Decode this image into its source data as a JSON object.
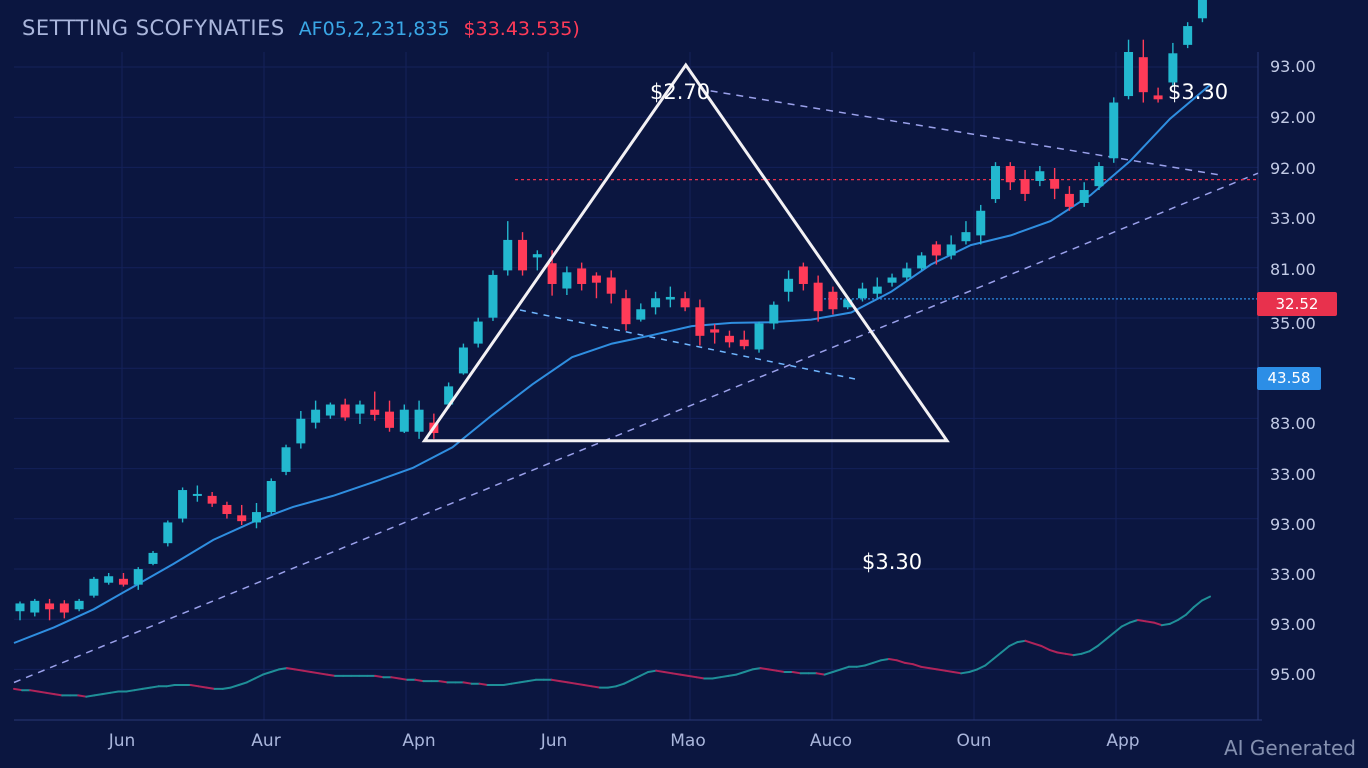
{
  "header": {
    "title": "SETTTING SCOFYNATIES",
    "value_1": "AF05,2,231,835",
    "value_2": "$33.43.535)"
  },
  "annotations": {
    "apex": "$2.70",
    "bottom_right": "$3.30",
    "top_right": "$3.30"
  },
  "badges": {
    "red_level": "32.52",
    "blue_level": "43.58"
  },
  "y_ticks": [
    "93.00",
    "92.00",
    "92.00",
    "33.00",
    "81.00",
    "35.00",
    "",
    "83.00",
    "33.00",
    "93.00",
    "33.00",
    "93.00",
    "95.00"
  ],
  "x_ticks": [
    "Jun",
    "Aur",
    "Apn",
    "Jun",
    "Mao",
    "Auco",
    "Oun",
    "App"
  ],
  "watermark": "AI Generated",
  "colors": {
    "background": "#0b1640",
    "up": "#23b8cf",
    "down": "#ff3b58",
    "ma_line": "#2f8ee0",
    "triangle": "#f3f1f4",
    "dashed_trend": "#9aa0ea",
    "red_level": "#e8314d",
    "blue_level": "#2c8ee6"
  },
  "chart_data": {
    "type": "candlestick",
    "title": "SETTTING SCOFYNATIES",
    "price_scale": "pixel-estimated (tick labels in the image are inconsistent); y = price-like index where 0 = chart bottom, 100 = chart top",
    "ylim": [
      0,
      100
    ],
    "candles_ohlc": [
      [
        13.7,
        14.9,
        15.2,
        12.3
      ],
      [
        13.5,
        15.3,
        15.6,
        12.9
      ],
      [
        14.9,
        14.0,
        15.6,
        12.3
      ],
      [
        14.9,
        13.5,
        15.4,
        12.6
      ],
      [
        14.0,
        15.3,
        15.6,
        13.7
      ],
      [
        16.1,
        18.7,
        19.0,
        15.8
      ],
      [
        18.1,
        19.1,
        19.6,
        17.8
      ],
      [
        18.7,
        17.8,
        19.6,
        17.5
      ],
      [
        17.8,
        20.2,
        20.5,
        17.0
      ],
      [
        21.0,
        22.7,
        23.0,
        20.8
      ],
      [
        24.2,
        27.4,
        27.7,
        23.7
      ],
      [
        28.0,
        32.4,
        32.8,
        27.4
      ],
      [
        31.8,
        31.8,
        33.1,
        30.6
      ],
      [
        31.5,
        30.3,
        32.1,
        29.8
      ],
      [
        30.1,
        28.7,
        30.6,
        28.0
      ],
      [
        28.5,
        27.6,
        30.1,
        27.0
      ],
      [
        27.4,
        29.0,
        30.4,
        26.5
      ],
      [
        29.0,
        33.8,
        34.2,
        28.7
      ],
      [
        35.2,
        39.0,
        39.4,
        34.7
      ],
      [
        39.6,
        43.4,
        44.6,
        38.8
      ],
      [
        42.8,
        44.8,
        46.2,
        41.9
      ],
      [
        43.9,
        45.6,
        45.9,
        43.4
      ],
      [
        45.6,
        43.6,
        46.5,
        43.1
      ],
      [
        44.2,
        45.6,
        46.2,
        42.6
      ],
      [
        44.8,
        44.0,
        47.6,
        43.1
      ],
      [
        44.5,
        42.0,
        46.2,
        41.4
      ],
      [
        41.4,
        44.8,
        45.6,
        41.2
      ],
      [
        41.4,
        44.8,
        46.2,
        40.3
      ],
      [
        42.8,
        41.2,
        44.2,
        40.3
      ],
      [
        45.6,
        48.4,
        49.0,
        45.0
      ],
      [
        50.4,
        54.4,
        55.0,
        50.2
      ],
      [
        55.0,
        58.4,
        59.0,
        54.4
      ],
      [
        59.0,
        65.6,
        66.3,
        58.5
      ],
      [
        66.3,
        71.0,
        73.9,
        65.5
      ],
      [
        71.0,
        66.3,
        72.2,
        65.5
      ],
      [
        68.3,
        68.8,
        69.4,
        66.3
      ],
      [
        67.4,
        64.2,
        69.4,
        62.4
      ],
      [
        63.5,
        66.0,
        66.9,
        62.5
      ],
      [
        66.6,
        64.2,
        67.5,
        63.2
      ],
      [
        65.5,
        64.4,
        66.0,
        62.0
      ],
      [
        65.2,
        62.7,
        66.3,
        61.2
      ],
      [
        62.0,
        58.0,
        63.3,
        57.0
      ],
      [
        58.7,
        60.3,
        61.2,
        58.4
      ],
      [
        60.6,
        62.0,
        63.0,
        59.5
      ],
      [
        61.8,
        62.2,
        63.8,
        60.6
      ],
      [
        62.0,
        60.6,
        63.0,
        60.0
      ],
      [
        60.6,
        56.2,
        61.8,
        54.7
      ],
      [
        57.2,
        56.7,
        58.0,
        55.0
      ],
      [
        56.2,
        55.2,
        57.0,
        54.4
      ],
      [
        55.6,
        54.6,
        57.0,
        54.1
      ],
      [
        54.1,
        58.1,
        58.4,
        53.6
      ],
      [
        58.1,
        61.0,
        61.5,
        57.2
      ],
      [
        63.0,
        65.0,
        66.3,
        61.5
      ],
      [
        66.9,
        64.2,
        67.5,
        63.2
      ],
      [
        64.4,
        60.0,
        65.5,
        58.4
      ],
      [
        63.0,
        60.3,
        63.8,
        59.5
      ],
      [
        60.6,
        61.8,
        62.0,
        60.3
      ],
      [
        62.0,
        63.5,
        64.4,
        61.5
      ],
      [
        62.7,
        63.8,
        65.2,
        62.0
      ],
      [
        64.4,
        65.2,
        65.8,
        63.8
      ],
      [
        65.2,
        66.6,
        67.5,
        64.7
      ],
      [
        66.6,
        68.6,
        69.1,
        66.3
      ],
      [
        70.3,
        68.6,
        70.8,
        67.2
      ],
      [
        68.6,
        70.3,
        71.7,
        68.0
      ],
      [
        70.8,
        72.2,
        73.9,
        70.3
      ],
      [
        71.7,
        75.5,
        76.4,
        70.3
      ],
      [
        77.3,
        82.4,
        83.0,
        76.7
      ],
      [
        82.4,
        79.9,
        83.0,
        78.7
      ],
      [
        80.4,
        78.1,
        81.8,
        77.0
      ],
      [
        80.1,
        81.6,
        82.4,
        79.3
      ],
      [
        80.4,
        78.9,
        82.1,
        77.3
      ],
      [
        78.1,
        76.1,
        79.3,
        75.5
      ],
      [
        76.7,
        78.7,
        79.9,
        76.1
      ],
      [
        79.3,
        82.4,
        83.0,
        78.7
      ],
      [
        83.6,
        92.2,
        93.0,
        82.9
      ],
      [
        93.2,
        100.0,
        101.9,
        92.7
      ],
      [
        99.2,
        93.8,
        101.9,
        92.2
      ],
      [
        93.3,
        92.7,
        94.5,
        92.2
      ],
      [
        95.3,
        99.8,
        101.4,
        94.7
      ],
      [
        101.1,
        104.0,
        104.6,
        100.6
      ],
      [
        105.2,
        108.1,
        109.5,
        104.6
      ],
      [
        110.7,
        110.2,
        112.7,
        109.5
      ],
      [
        110.7,
        111.5,
        112.1,
        110.2
      ]
    ],
    "moving_average": [
      8.8,
      11.2,
      14.0,
      17.5,
      21.0,
      24.7,
      27.5,
      29.8,
      31.5,
      33.6,
      35.8,
      39.0,
      44.0,
      48.7,
      52.9,
      55.0,
      56.3,
      57.7,
      58.2,
      58.3,
      58.7,
      59.8,
      63.0,
      67.2,
      70.2,
      71.7,
      73.9,
      77.9,
      83.2,
      89.7,
      94.9
    ],
    "trendline_lower": {
      "from": [
        0,
        2.7
      ],
      "to": [
        100,
        81.3
      ]
    },
    "trendline_upper": {
      "from": [
        56,
        94
      ],
      "to": [
        97,
        81
      ]
    },
    "triangle": {
      "apex": [
        54,
        98
      ],
      "left": [
        33,
        40
      ],
      "right": [
        75,
        40
      ]
    },
    "red_level": 80.3,
    "blue_level": 61.9,
    "oscillator": [
      7,
      6,
      6,
      5,
      4,
      3,
      2,
      2,
      2,
      1,
      2,
      3,
      4,
      5,
      5,
      6,
      7,
      8,
      9,
      9,
      10,
      10,
      10,
      9,
      8,
      7,
      7,
      8,
      10,
      12,
      15,
      18,
      20,
      22,
      23,
      22,
      21,
      20,
      19,
      18,
      17,
      17,
      17,
      17,
      17,
      17,
      16,
      16,
      15,
      14,
      14,
      13,
      13,
      13,
      12,
      12,
      12,
      11,
      11,
      10,
      10,
      10,
      11,
      12,
      13,
      14,
      14,
      14,
      13,
      12,
      11,
      10,
      9,
      8,
      8,
      9,
      11,
      14,
      17,
      20,
      21,
      20,
      19,
      18,
      17,
      16,
      15,
      15,
      16,
      17,
      18,
      20,
      22,
      23,
      22,
      21,
      20,
      20,
      19,
      19,
      19,
      18,
      20,
      22,
      24,
      24,
      25,
      27,
      29,
      30,
      29,
      27,
      26,
      24,
      23,
      22,
      21,
      20,
      19,
      20,
      22,
      25,
      30,
      35,
      40,
      43,
      44,
      42,
      40,
      37,
      35,
      34,
      33,
      34,
      36,
      40,
      45,
      50,
      55,
      58,
      60,
      59,
      58,
      56,
      57,
      60,
      64,
      70,
      75,
      78
    ]
  }
}
